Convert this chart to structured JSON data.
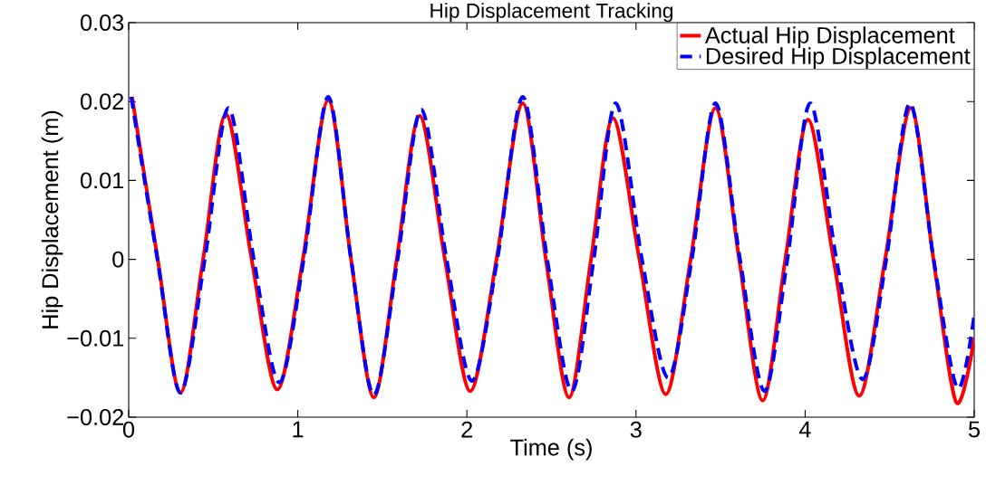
{
  "chart_data": {
    "type": "line",
    "title": "Hip Displacement Tracking",
    "xlabel": "Time (s)",
    "ylabel": "Hip Displacement (m)",
    "xlim": [
      0,
      5
    ],
    "ylim": [
      -0.02,
      0.03
    ],
    "xticks": [
      0,
      1,
      2,
      3,
      4,
      5
    ],
    "yticks": [
      {
        "value": -0.02,
        "label": "−0.02"
      },
      {
        "value": -0.01,
        "label": "−0.01"
      },
      0,
      0.01,
      0.02,
      0.03
    ],
    "legend": "top right",
    "grid": false,
    "series": [
      {
        "name": "Actual Hip Displacement",
        "color": "#ff0000",
        "line_style": "solid",
        "x": [
          0.02,
          0.172,
          0.306,
          0.44,
          0.575,
          0.727,
          0.879,
          1.03,
          1.18,
          1.315,
          1.45,
          1.585,
          1.72,
          1.87,
          2.02,
          2.175,
          2.33,
          2.467,
          2.604,
          2.734,
          2.864,
          3.02,
          3.176,
          3.323,
          3.47,
          3.61,
          3.749,
          3.883,
          4.017,
          4.168,
          4.32,
          4.473,
          4.625,
          4.759,
          4.893,
          5
        ],
        "values": [
          0.0206,
          0,
          -0.0169,
          0,
          0.0184,
          0,
          -0.0165,
          0,
          0.0202,
          0,
          -0.0175,
          0,
          0.0182,
          0,
          -0.0167,
          0,
          0.0198,
          0,
          -0.0175,
          0,
          0.0179,
          0,
          -0.0171,
          0,
          0.0192,
          0,
          -0.0179,
          0,
          0.0177,
          0,
          -0.0173,
          0,
          0.0192,
          0,
          -0.0181,
          -0.01
        ]
      },
      {
        "name": "Desired Hip Displacement",
        "color": "#0000ff",
        "line_style": "dashed",
        "x": [
          0.015,
          0.17,
          0.306,
          0.45,
          0.59,
          0.74,
          0.89,
          1.035,
          1.18,
          1.315,
          1.45,
          1.59,
          1.73,
          1.88,
          2.03,
          2.18,
          2.33,
          2.475,
          2.62,
          2.75,
          2.88,
          3.035,
          3.19,
          3.33,
          3.47,
          3.615,
          3.76,
          3.895,
          4.03,
          4.185,
          4.34,
          4.48,
          4.62,
          4.76,
          4.9,
          5
        ],
        "values": [
          0.0206,
          0,
          -0.0169,
          0,
          0.0192,
          0,
          -0.0156,
          0,
          0.0206,
          0,
          -0.0172,
          0,
          0.019,
          0,
          -0.0154,
          0,
          0.0206,
          0,
          -0.0167,
          0,
          0.0198,
          0,
          -0.015,
          0,
          0.0198,
          0,
          -0.0167,
          0,
          0.0198,
          0,
          -0.0152,
          0,
          0.0198,
          0,
          -0.0163,
          -0.0071
        ]
      }
    ]
  }
}
